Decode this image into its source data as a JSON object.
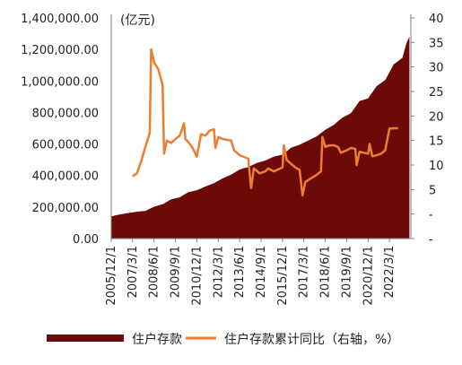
{
  "chart_data": {
    "type": "area",
    "unit_label": "(亿元)",
    "colors": {
      "area": "#6b0a08",
      "line": "#ed7d31"
    },
    "x_ticks": [
      "2005/12/1",
      "2007/3/1",
      "2008/6/1",
      "2009/9/1",
      "2010/12/1",
      "2012/3/1",
      "2013/6/1",
      "2014/9/1",
      "2015/12/1",
      "2017/3/1",
      "2018/6/1",
      "2019/9/1",
      "2020/12/1",
      "2022/3/1"
    ],
    "x_range": [
      "2005/12/1",
      "2023/6/1"
    ],
    "y_left": {
      "range": [
        0,
        1400000
      ],
      "ticks": [
        0,
        200000,
        400000,
        600000,
        800000,
        1000000,
        1200000,
        1400000
      ],
      "tick_labels": [
        "0.00",
        "200,000.00",
        "400,000.00",
        "600,000.00",
        "800,000.00",
        "1,000,000.00",
        "1,200,000.00",
        "1,400,000.00"
      ]
    },
    "y_right": {
      "range": [
        -5,
        40
      ],
      "ticks": [
        -5,
        0,
        5,
        10,
        15,
        20,
        25,
        30,
        35,
        40
      ],
      "tick_labels": [
        "-",
        "-",
        "5",
        "10",
        "15",
        "20",
        "25",
        "30",
        "35",
        "40"
      ]
    },
    "series": [
      {
        "name": "住户存款",
        "axis": "left",
        "type": "area",
        "points": [
          [
            "2005/12/1",
            141000
          ],
          [
            "2006/6/1",
            153000
          ],
          [
            "2006/12/1",
            162000
          ],
          [
            "2007/6/1",
            170000
          ],
          [
            "2007/12/1",
            176000
          ],
          [
            "2008/6/1",
            202000
          ],
          [
            "2008/12/1",
            218000
          ],
          [
            "2009/6/1",
            249000
          ],
          [
            "2009/12/1",
            262000
          ],
          [
            "2010/6/1",
            295000
          ],
          [
            "2010/12/1",
            307000
          ],
          [
            "2011/6/1",
            330000
          ],
          [
            "2011/12/1",
            351000
          ],
          [
            "2012/6/1",
            382000
          ],
          [
            "2012/12/1",
            405000
          ],
          [
            "2013/6/1",
            438000
          ],
          [
            "2013/12/1",
            454000
          ],
          [
            "2014/6/1",
            480000
          ],
          [
            "2014/12/1",
            495000
          ],
          [
            "2015/6/1",
            520000
          ],
          [
            "2015/12/1",
            532000
          ],
          [
            "2016/6/1",
            576000
          ],
          [
            "2016/12/1",
            595000
          ],
          [
            "2017/6/1",
            622000
          ],
          [
            "2017/12/1",
            649000
          ],
          [
            "2018/6/1",
            690000
          ],
          [
            "2018/12/1",
            721000
          ],
          [
            "2019/6/1",
            768000
          ],
          [
            "2019/12/1",
            795000
          ],
          [
            "2020/6/1",
            873000
          ],
          [
            "2020/12/1",
            889000
          ],
          [
            "2021/6/1",
            967000
          ],
          [
            "2021/12/1",
            1006000
          ],
          [
            "2022/6/1",
            1105000
          ],
          [
            "2022/12/1",
            1146000
          ],
          [
            "2023/3/1",
            1241000
          ],
          [
            "2023/5/1",
            1282000
          ]
        ]
      },
      {
        "name": "住户存款累计同比（右轴，%）",
        "axis": "right",
        "type": "line",
        "points": [
          [
            "2007/3/1",
            7.7
          ],
          [
            "2007/6/1",
            8.3
          ],
          [
            "2007/9/1",
            10.8
          ],
          [
            "2007/12/1",
            13.8
          ],
          [
            "2008/3/1",
            16.5
          ],
          [
            "2008/4/1",
            33.6
          ],
          [
            "2008/6/1",
            31.0
          ],
          [
            "2008/9/1",
            29.5
          ],
          [
            "2008/12/1",
            26.3
          ],
          [
            "2009/1/1",
            12.3
          ],
          [
            "2009/3/1",
            15.0
          ],
          [
            "2009/6/1",
            14.5
          ],
          [
            "2009/9/1",
            15.3
          ],
          [
            "2009/12/1",
            16.0
          ],
          [
            "2010/3/1",
            18.5
          ],
          [
            "2010/4/1",
            15.3
          ],
          [
            "2010/6/1",
            14.7
          ],
          [
            "2010/9/1",
            13.5
          ],
          [
            "2010/12/1",
            11.7
          ],
          [
            "2011/3/1",
            16.3
          ],
          [
            "2011/6/1",
            16.0
          ],
          [
            "2011/9/1",
            17.0
          ],
          [
            "2011/12/1",
            17.3
          ],
          [
            "2012/1/1",
            13.5
          ],
          [
            "2012/3/1",
            15.7
          ],
          [
            "2012/6/1",
            15.3
          ],
          [
            "2012/12/1",
            15.0
          ],
          [
            "2013/2/1",
            13.0
          ],
          [
            "2013/6/1",
            12.0
          ],
          [
            "2013/12/1",
            11.3
          ],
          [
            "2014/2/1",
            5.3
          ],
          [
            "2014/4/1",
            9.3
          ],
          [
            "2014/8/1",
            8.3
          ],
          [
            "2014/12/1",
            8.7
          ],
          [
            "2015/2/1",
            9.3
          ],
          [
            "2015/6/1",
            8.7
          ],
          [
            "2015/12/1",
            9.5
          ],
          [
            "2016/1/1",
            14.0
          ],
          [
            "2016/3/1",
            11.0
          ],
          [
            "2016/9/1",
            9.5
          ],
          [
            "2016/12/1",
            9.0
          ],
          [
            "2017/2/1",
            3.8
          ],
          [
            "2017/4/1",
            6.5
          ],
          [
            "2017/8/1",
            7.3
          ],
          [
            "2017/12/1",
            8.0
          ],
          [
            "2018/3/1",
            8.7
          ],
          [
            "2018/4/1",
            15.7
          ],
          [
            "2018/6/1",
            13.7
          ],
          [
            "2018/9/1",
            14.0
          ],
          [
            "2018/12/1",
            14.0
          ],
          [
            "2019/3/1",
            13.7
          ],
          [
            "2019/5/1",
            12.5
          ],
          [
            "2019/9/1",
            13.0
          ],
          [
            "2019/12/1",
            13.5
          ],
          [
            "2020/3/1",
            13.3
          ],
          [
            "2020/4/1",
            10.0
          ],
          [
            "2020/6/1",
            12.7
          ],
          [
            "2020/9/1",
            12.5
          ],
          [
            "2020/12/1",
            12.3
          ],
          [
            "2021/1/1",
            14.3
          ],
          [
            "2021/3/1",
            11.8
          ],
          [
            "2021/6/1",
            12.0
          ],
          [
            "2021/9/1",
            12.3
          ],
          [
            "2021/12/1",
            13.0
          ],
          [
            "2022/3/1",
            17.4
          ],
          [
            "2022/6/1",
            17.5
          ],
          [
            "2022/9/1",
            17.5
          ]
        ]
      }
    ]
  }
}
